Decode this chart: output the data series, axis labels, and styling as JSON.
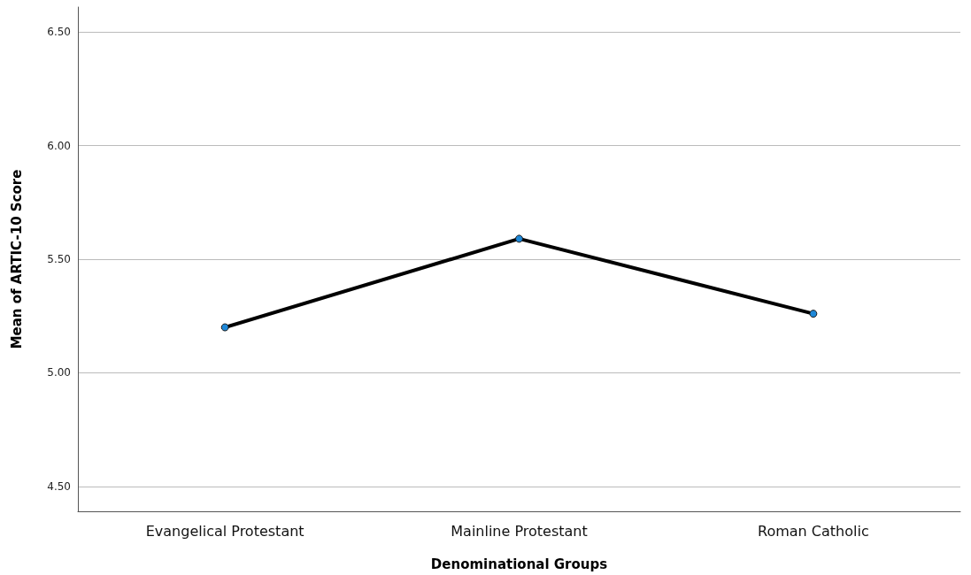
{
  "chart_data": {
    "type": "line",
    "xlabel": "Denominational Groups",
    "ylabel": "Mean of ARTIC-10 Score",
    "categories": [
      "Evangelical Protestant",
      "Mainline Protestant",
      "Roman Catholic"
    ],
    "series": [
      {
        "color": "#000000",
        "values": [
          5.2,
          5.59,
          5.26
        ]
      }
    ],
    "colors": [
      "#1e88d8",
      "#1e88d8",
      "#1e88d8"
    ],
    "ylim": [
      4.39,
      6.61
    ],
    "yticks": [
      {
        "value": 4.5,
        "label": "4.50"
      },
      {
        "value": 5,
        "label": "5.00"
      },
      {
        "value": 5.5,
        "label": "5.50"
      },
      {
        "value": 6,
        "label": "6.00"
      },
      {
        "value": 6.5,
        "label": "6.50"
      }
    ],
    "grid": "y",
    "marker": "circle",
    "line_style": "solid"
  }
}
